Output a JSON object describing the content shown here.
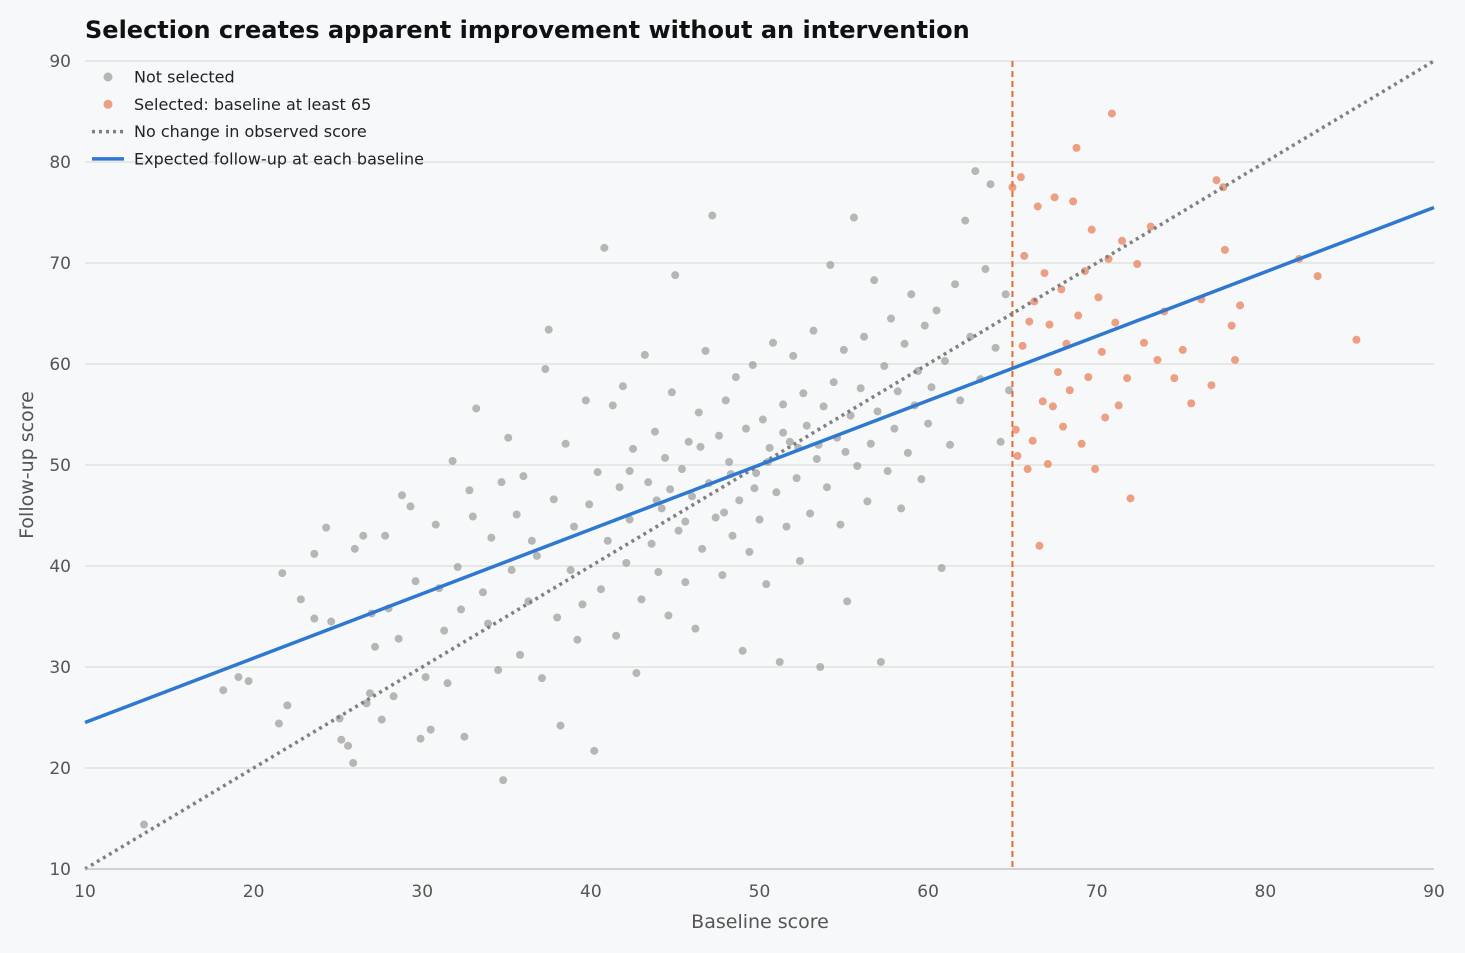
{
  "chart_data": {
    "type": "scatter",
    "title": "Selection creates apparent improvement without an intervention",
    "xlabel": "Baseline score",
    "ylabel": "Follow-up score",
    "xlim": [
      10,
      90
    ],
    "ylim": [
      10,
      90
    ],
    "xticks": [
      10,
      20,
      30,
      40,
      50,
      60,
      70,
      80,
      90
    ],
    "yticks": [
      10,
      20,
      30,
      40,
      50,
      60,
      70,
      80,
      90
    ],
    "grid": "horizontal",
    "legend_position": "top-left",
    "threshold": 65,
    "colors": {
      "not_selected": "#8a8a85",
      "selected": "#e8825a",
      "no_change": "#808080",
      "expected": "#2f78d0",
      "threshold_line": "#e8692f",
      "grid": "#dcdfdc"
    },
    "series": [
      {
        "name": "Not selected",
        "kind": "scatter",
        "points": [
          [
            13.5,
            14.4
          ],
          [
            18.2,
            27.7
          ],
          [
            19.1,
            29.0
          ],
          [
            19.7,
            28.6
          ],
          [
            21.5,
            24.4
          ],
          [
            21.7,
            39.3
          ],
          [
            22.0,
            26.2
          ],
          [
            22.8,
            36.7
          ],
          [
            23.6,
            41.2
          ],
          [
            23.6,
            34.8
          ],
          [
            24.3,
            43.8
          ],
          [
            24.6,
            34.5
          ],
          [
            25.1,
            24.9
          ],
          [
            25.2,
            22.8
          ],
          [
            25.6,
            22.2
          ],
          [
            25.9,
            20.5
          ],
          [
            26.0,
            41.7
          ],
          [
            26.5,
            43.0
          ],
          [
            26.7,
            26.4
          ],
          [
            26.9,
            27.4
          ],
          [
            27.0,
            35.3
          ],
          [
            27.2,
            32.0
          ],
          [
            27.6,
            24.8
          ],
          [
            27.8,
            43.0
          ],
          [
            28.0,
            35.8
          ],
          [
            28.3,
            27.1
          ],
          [
            28.6,
            32.8
          ],
          [
            28.8,
            47.0
          ],
          [
            29.3,
            45.9
          ],
          [
            29.6,
            38.5
          ],
          [
            29.9,
            22.9
          ],
          [
            30.2,
            29.0
          ],
          [
            30.5,
            23.8
          ],
          [
            30.8,
            44.1
          ],
          [
            31.0,
            37.8
          ],
          [
            31.3,
            33.6
          ],
          [
            31.5,
            28.4
          ],
          [
            31.8,
            50.4
          ],
          [
            32.1,
            39.9
          ],
          [
            32.3,
            35.7
          ],
          [
            32.5,
            23.1
          ],
          [
            32.8,
            47.5
          ],
          [
            33.0,
            44.9
          ],
          [
            33.2,
            55.6
          ],
          [
            33.6,
            37.4
          ],
          [
            33.9,
            34.3
          ],
          [
            34.1,
            42.8
          ],
          [
            34.5,
            29.7
          ],
          [
            34.7,
            48.3
          ],
          [
            34.8,
            18.8
          ],
          [
            35.1,
            52.7
          ],
          [
            35.3,
            39.6
          ],
          [
            35.6,
            45.1
          ],
          [
            35.8,
            31.2
          ],
          [
            36.0,
            48.9
          ],
          [
            36.3,
            36.5
          ],
          [
            36.5,
            42.5
          ],
          [
            36.8,
            41.0
          ],
          [
            37.1,
            28.9
          ],
          [
            37.3,
            59.5
          ],
          [
            37.5,
            63.4
          ],
          [
            37.8,
            46.6
          ],
          [
            38.0,
            34.9
          ],
          [
            38.2,
            24.2
          ],
          [
            38.5,
            52.1
          ],
          [
            38.8,
            39.6
          ],
          [
            39.0,
            43.9
          ],
          [
            39.2,
            32.7
          ],
          [
            39.5,
            36.2
          ],
          [
            39.7,
            56.4
          ],
          [
            39.9,
            46.1
          ],
          [
            40.2,
            21.7
          ],
          [
            40.4,
            49.3
          ],
          [
            40.6,
            37.7
          ],
          [
            40.8,
            71.5
          ],
          [
            41.0,
            42.5
          ],
          [
            41.3,
            55.9
          ],
          [
            41.5,
            33.1
          ],
          [
            41.7,
            47.8
          ],
          [
            41.9,
            57.8
          ],
          [
            42.1,
            40.3
          ],
          [
            42.3,
            44.6
          ],
          [
            42.5,
            51.6
          ],
          [
            42.7,
            29.4
          ],
          [
            43.0,
            36.7
          ],
          [
            43.2,
            60.9
          ],
          [
            43.4,
            48.3
          ],
          [
            43.6,
            42.2
          ],
          [
            43.8,
            53.3
          ],
          [
            44.0,
            39.4
          ],
          [
            44.2,
            45.7
          ],
          [
            44.4,
            50.7
          ],
          [
            44.6,
            35.1
          ],
          [
            44.8,
            57.2
          ],
          [
            45.0,
            68.8
          ],
          [
            45.2,
            43.5
          ],
          [
            45.4,
            49.6
          ],
          [
            45.6,
            38.4
          ],
          [
            45.8,
            52.3
          ],
          [
            46.0,
            46.9
          ],
          [
            46.2,
            33.8
          ],
          [
            46.4,
            55.2
          ],
          [
            46.6,
            41.7
          ],
          [
            46.8,
            61.3
          ],
          [
            47.0,
            48.2
          ],
          [
            47.2,
            74.7
          ],
          [
            47.4,
            44.8
          ],
          [
            47.6,
            52.9
          ],
          [
            47.8,
            39.1
          ],
          [
            48.0,
            56.4
          ],
          [
            48.2,
            50.3
          ],
          [
            48.4,
            43.0
          ],
          [
            48.6,
            58.7
          ],
          [
            48.8,
            46.5
          ],
          [
            49.0,
            31.6
          ],
          [
            49.2,
            53.6
          ],
          [
            49.4,
            41.4
          ],
          [
            49.6,
            59.9
          ],
          [
            49.8,
            49.2
          ],
          [
            50.0,
            44.6
          ],
          [
            50.2,
            54.5
          ],
          [
            50.4,
            38.2
          ],
          [
            50.6,
            51.7
          ],
          [
            50.8,
            62.1
          ],
          [
            51.0,
            47.3
          ],
          [
            51.2,
            30.5
          ],
          [
            51.4,
            56.0
          ],
          [
            51.6,
            43.9
          ],
          [
            51.8,
            52.3
          ],
          [
            52.0,
            60.8
          ],
          [
            52.2,
            48.7
          ],
          [
            52.4,
            40.5
          ],
          [
            52.6,
            57.1
          ],
          [
            52.8,
            53.9
          ],
          [
            53.0,
            45.2
          ],
          [
            53.2,
            63.3
          ],
          [
            53.4,
            50.6
          ],
          [
            53.6,
            30.0
          ],
          [
            53.8,
            55.8
          ],
          [
            54.0,
            47.8
          ],
          [
            54.2,
            69.8
          ],
          [
            54.4,
            58.2
          ],
          [
            54.6,
            52.7
          ],
          [
            54.8,
            44.1
          ],
          [
            55.0,
            61.4
          ],
          [
            55.2,
            36.5
          ],
          [
            55.4,
            54.9
          ],
          [
            55.6,
            74.5
          ],
          [
            55.8,
            49.9
          ],
          [
            56.0,
            57.6
          ],
          [
            56.2,
            62.7
          ],
          [
            56.4,
            46.4
          ],
          [
            56.6,
            52.1
          ],
          [
            56.8,
            68.3
          ],
          [
            57.0,
            55.3
          ],
          [
            57.2,
            30.5
          ],
          [
            57.4,
            59.8
          ],
          [
            57.6,
            49.4
          ],
          [
            57.8,
            64.5
          ],
          [
            58.0,
            53.6
          ],
          [
            58.2,
            57.3
          ],
          [
            58.4,
            45.7
          ],
          [
            58.6,
            62.0
          ],
          [
            58.8,
            51.2
          ],
          [
            59.0,
            66.9
          ],
          [
            59.2,
            55.9
          ],
          [
            59.4,
            59.3
          ],
          [
            59.6,
            48.6
          ],
          [
            59.8,
            63.8
          ],
          [
            60.0,
            54.1
          ],
          [
            60.2,
            57.7
          ],
          [
            60.5,
            65.3
          ],
          [
            60.8,
            39.8
          ],
          [
            61.0,
            60.3
          ],
          [
            61.3,
            52.0
          ],
          [
            61.6,
            67.9
          ],
          [
            61.9,
            56.4
          ],
          [
            62.2,
            74.2
          ],
          [
            62.5,
            62.7
          ],
          [
            62.8,
            79.1
          ],
          [
            63.1,
            58.5
          ],
          [
            63.4,
            69.4
          ],
          [
            63.7,
            77.8
          ],
          [
            64.0,
            61.6
          ],
          [
            64.3,
            52.3
          ],
          [
            64.6,
            66.9
          ],
          [
            64.8,
            57.4
          ],
          [
            42.3,
            49.4
          ],
          [
            44.7,
            47.6
          ],
          [
            46.5,
            51.8
          ],
          [
            48.3,
            49.1
          ],
          [
            50.5,
            50.3
          ],
          [
            52.3,
            51.7
          ],
          [
            47.9,
            45.3
          ],
          [
            49.7,
            47.7
          ],
          [
            51.4,
            53.2
          ],
          [
            53.5,
            52.0
          ],
          [
            45.6,
            44.4
          ],
          [
            43.9,
            46.5
          ],
          [
            55.1,
            51.3
          ]
        ]
      },
      {
        "name": "Selected: baseline at least 65",
        "kind": "scatter",
        "points": [
          [
            65.0,
            77.5
          ],
          [
            65.2,
            53.5
          ],
          [
            65.3,
            50.9
          ],
          [
            65.5,
            78.5
          ],
          [
            65.6,
            61.8
          ],
          [
            65.7,
            70.7
          ],
          [
            65.9,
            49.6
          ],
          [
            66.0,
            64.2
          ],
          [
            66.2,
            52.4
          ],
          [
            66.3,
            66.2
          ],
          [
            66.5,
            75.6
          ],
          [
            66.6,
            42.0
          ],
          [
            66.8,
            56.3
          ],
          [
            66.9,
            69.0
          ],
          [
            67.1,
            50.1
          ],
          [
            67.2,
            63.9
          ],
          [
            67.4,
            55.8
          ],
          [
            67.5,
            76.5
          ],
          [
            67.7,
            59.2
          ],
          [
            67.9,
            67.4
          ],
          [
            68.0,
            53.8
          ],
          [
            68.2,
            62.0
          ],
          [
            68.4,
            57.4
          ],
          [
            68.6,
            76.1
          ],
          [
            68.8,
            81.4
          ],
          [
            68.9,
            64.8
          ],
          [
            69.1,
            52.1
          ],
          [
            69.3,
            69.2
          ],
          [
            69.5,
            58.7
          ],
          [
            69.7,
            73.3
          ],
          [
            69.9,
            49.6
          ],
          [
            70.1,
            66.6
          ],
          [
            70.3,
            61.2
          ],
          [
            70.5,
            54.7
          ],
          [
            70.7,
            70.4
          ],
          [
            70.9,
            84.8
          ],
          [
            71.1,
            64.1
          ],
          [
            71.3,
            55.9
          ],
          [
            71.5,
            72.2
          ],
          [
            71.8,
            58.6
          ],
          [
            72.0,
            46.7
          ],
          [
            72.4,
            69.9
          ],
          [
            72.8,
            62.1
          ],
          [
            73.2,
            73.6
          ],
          [
            73.6,
            60.4
          ],
          [
            74.0,
            65.2
          ],
          [
            74.6,
            58.6
          ],
          [
            75.1,
            61.4
          ],
          [
            75.6,
            56.1
          ],
          [
            76.2,
            66.4
          ],
          [
            76.8,
            57.9
          ],
          [
            77.1,
            78.2
          ],
          [
            77.6,
            71.3
          ],
          [
            78.0,
            63.8
          ],
          [
            78.2,
            60.4
          ],
          [
            78.5,
            65.8
          ],
          [
            82.0,
            70.4
          ],
          [
            83.1,
            68.7
          ],
          [
            85.4,
            62.4
          ],
          [
            77.5,
            77.5
          ]
        ]
      },
      {
        "name": "No change in observed score",
        "kind": "line",
        "style": "dotted",
        "x": [
          10,
          90
        ],
        "y": [
          10,
          90
        ]
      },
      {
        "name": "Expected follow-up at each baseline",
        "kind": "line",
        "style": "solid",
        "x": [
          10,
          90
        ],
        "y": [
          24.5,
          75.5
        ]
      }
    ]
  }
}
